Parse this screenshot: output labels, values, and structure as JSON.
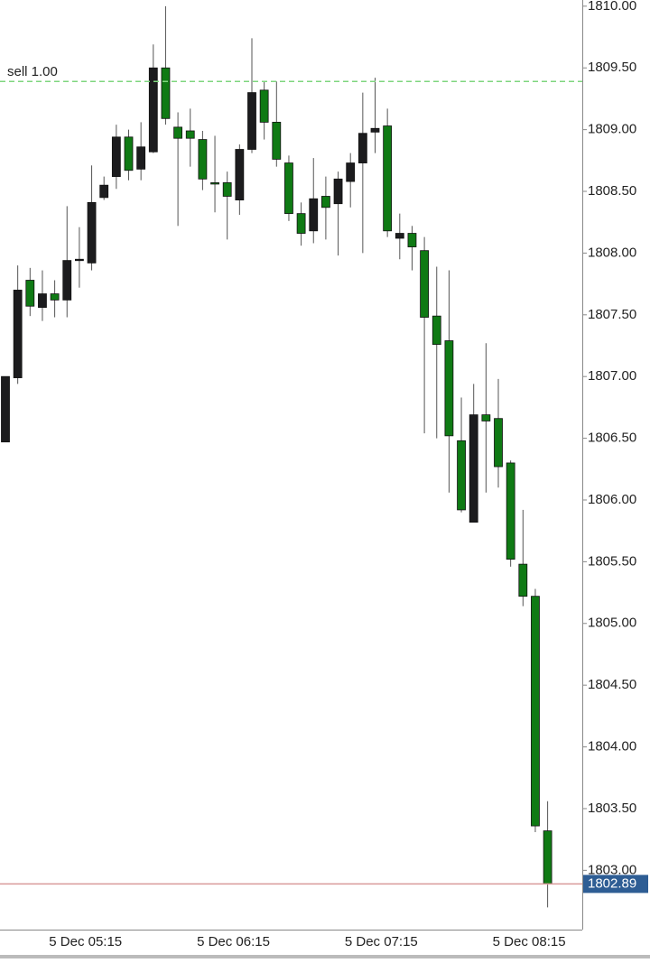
{
  "chart_data": {
    "type": "candlestick",
    "categories": [
      null,
      null,
      null,
      null,
      null,
      null,
      "5 Dec 05:15",
      null,
      null,
      null,
      null,
      null,
      null,
      null,
      null,
      null,
      null,
      null,
      "5 Dec 06:15",
      null,
      null,
      null,
      null,
      null,
      null,
      null,
      null,
      null,
      null,
      null,
      "5 Dec 07:15",
      null,
      null,
      null,
      null,
      null,
      null,
      null,
      null,
      null,
      null,
      null,
      "5 Dec 08:15",
      null,
      null
    ],
    "open": [
      1806.47,
      1806.99,
      1807.78,
      1807.56,
      1807.67,
      1807.62,
      1807.94,
      1807.92,
      1808.45,
      1808.62,
      1808.94,
      1808.68,
      1808.82,
      1809.5,
      1809.02,
      1808.99,
      1808.92,
      1808.57,
      1808.57,
      1808.43,
      1808.84,
      1809.32,
      1809.06,
      1808.73,
      1808.32,
      1808.18,
      1808.46,
      1808.4,
      1808.58,
      1808.73,
      1808.98,
      1809.03,
      1808.12,
      1808.16,
      1808.02,
      1807.49,
      1807.29,
      1806.48,
      1805.82,
      1806.69,
      1806.66,
      1806.3,
      1805.48,
      1805.22,
      1803.32
    ],
    "high": [
      1807.0,
      1807.9,
      1807.88,
      1807.86,
      1807.78,
      1808.38,
      1808.21,
      1808.71,
      1808.62,
      1809.04,
      1809.0,
      1809.06,
      1809.69,
      1810.0,
      1809.14,
      1809.17,
      1808.99,
      1808.95,
      1808.66,
      1808.88,
      1809.74,
      1809.39,
      1809.39,
      1808.79,
      1808.41,
      1808.77,
      1808.62,
      1808.66,
      1808.81,
      1809.3,
      1809.42,
      1809.17,
      1808.32,
      1808.22,
      1808.13,
      1807.89,
      1807.86,
      1806.83,
      1806.94,
      1807.27,
      1806.98,
      1806.32,
      1805.92,
      1805.28,
      1803.56
    ],
    "low": [
      1806.47,
      1806.94,
      1807.49,
      1807.45,
      1807.48,
      1807.48,
      1807.72,
      1807.86,
      1808.43,
      1808.52,
      1808.59,
      1808.59,
      1808.81,
      1809.04,
      1808.22,
      1808.7,
      1808.51,
      1808.33,
      1808.11,
      1808.31,
      1808.81,
      1808.92,
      1808.7,
      1808.26,
      1808.06,
      1808.08,
      1808.11,
      1807.98,
      1808.37,
      1808.0,
      1808.81,
      1808.13,
      1807.95,
      1807.86,
      1806.54,
      1806.5,
      1806.06,
      1805.9,
      1805.82,
      1806.06,
      1806.1,
      1805.46,
      1805.14,
      1803.31,
      1802.7
    ],
    "close": [
      1807.0,
      1807.7,
      1807.57,
      1807.67,
      1807.62,
      1807.94,
      1807.95,
      1808.41,
      1808.55,
      1808.94,
      1808.67,
      1808.86,
      1809.5,
      1809.09,
      1808.93,
      1808.93,
      1808.6,
      1808.56,
      1808.46,
      1808.84,
      1809.3,
      1809.06,
      1808.76,
      1808.32,
      1808.16,
      1808.44,
      1808.37,
      1808.6,
      1808.73,
      1808.97,
      1809.01,
      1808.18,
      1808.16,
      1808.05,
      1807.48,
      1807.26,
      1806.52,
      1805.92,
      1806.69,
      1806.64,
      1806.27,
      1805.52,
      1805.22,
      1803.36,
      1802.89
    ],
    "up_color": "#1c1c1e",
    "down_color": "#0f7a14",
    "ylim": [
      1802.52,
      1810.05
    ],
    "yticks": [
      {
        "value": 1803,
        "label": "1803.00"
      },
      {
        "value": 1803.5,
        "label": "1803.50"
      },
      {
        "value": 1804,
        "label": "1804.00"
      },
      {
        "value": 1804.5,
        "label": "1804.50"
      },
      {
        "value": 1805,
        "label": "1805.00"
      },
      {
        "value": 1805.5,
        "label": "1805.50"
      },
      {
        "value": 1806,
        "label": "1806.00"
      },
      {
        "value": 1806.5,
        "label": "1806.50"
      },
      {
        "value": 1807,
        "label": "1807.00"
      },
      {
        "value": 1807.5,
        "label": "1807.50"
      },
      {
        "value": 1808,
        "label": "1808.00"
      },
      {
        "value": 1808.5,
        "label": "1808.50"
      },
      {
        "value": 1809,
        "label": "1809.00"
      },
      {
        "value": 1809.5,
        "label": "1809.50"
      },
      {
        "value": 1810,
        "label": "1810.00"
      }
    ],
    "order_line": {
      "label": "sell 1.00",
      "value": 1809.39,
      "color": "#7fd67f"
    },
    "last_price": 1802.89,
    "last_price_color": "#d99a9a",
    "last_price_box_color": "#2e5d94"
  }
}
